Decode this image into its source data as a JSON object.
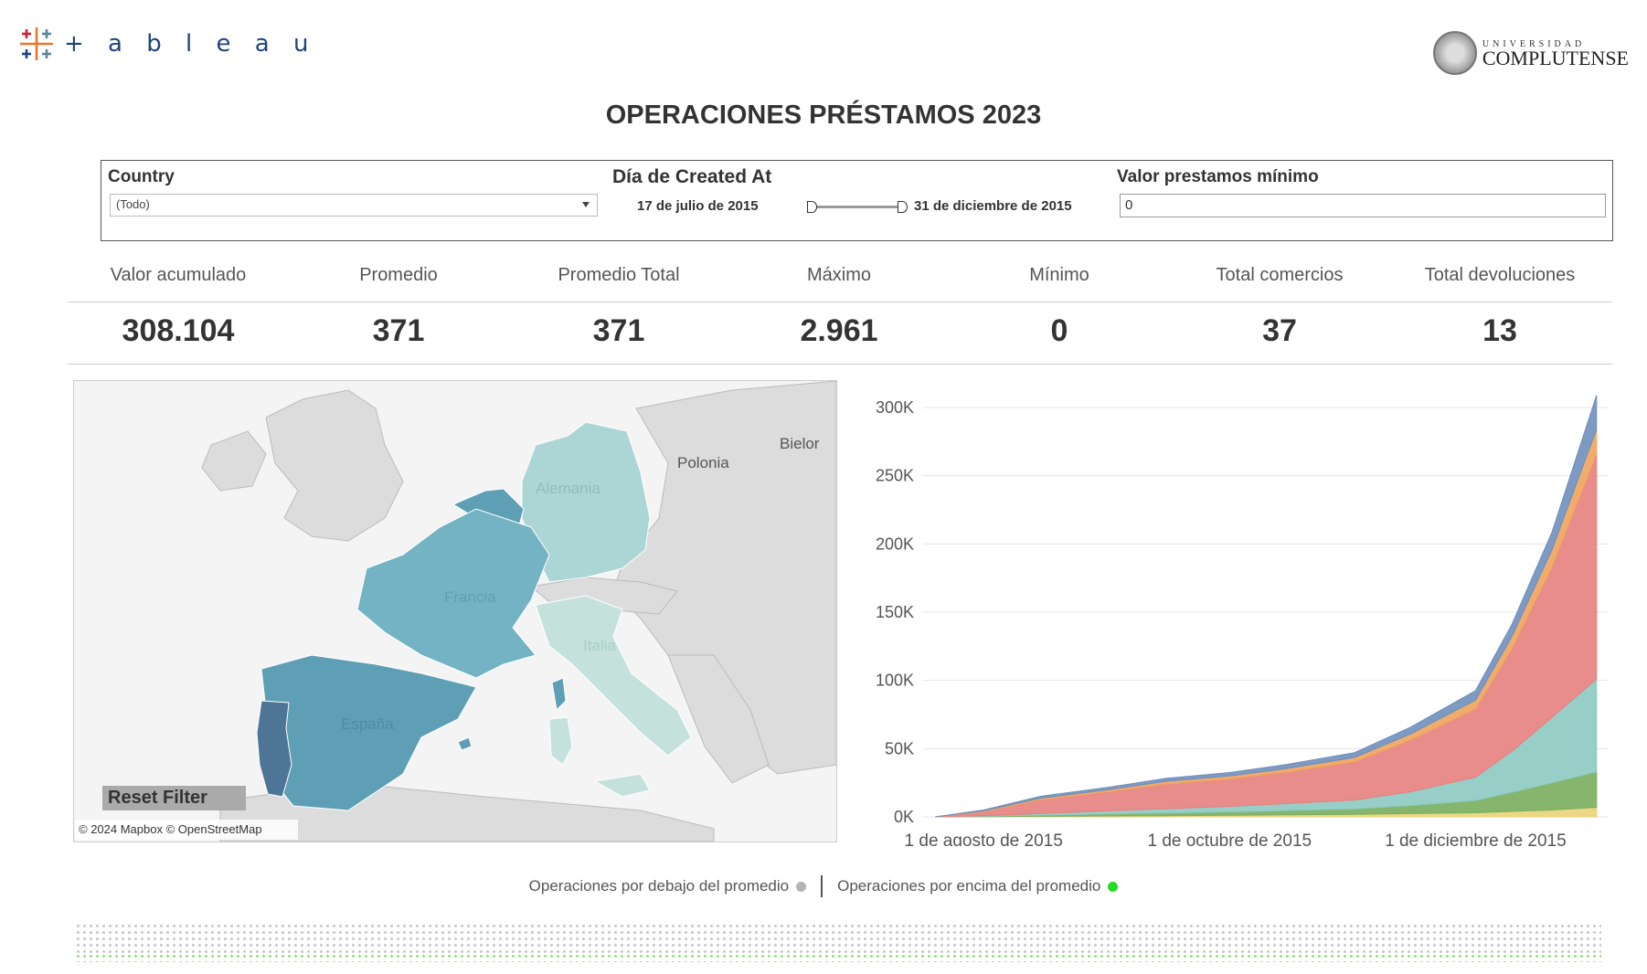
{
  "header": {
    "logo_text": "+ a b l e a u",
    "university_small": "UNIVERSIDAD",
    "university_big": "COMPLUTENSE",
    "title": "OPERACIONES PRÉSTAMOS 2023"
  },
  "filters": {
    "country_label": "Country",
    "country_value": "(Todo)",
    "date_label": "Día de Created At",
    "date_start": "17 de julio de 2015",
    "date_end": "31 de diciembre de 2015",
    "min_label": "Valor prestamos mínimo",
    "min_value": "0"
  },
  "kpis": [
    {
      "label": "Valor acumulado",
      "value": "308.104"
    },
    {
      "label": "Promedio",
      "value": "371"
    },
    {
      "label": "Promedio Total",
      "value": "371"
    },
    {
      "label": "Máximo",
      "value": "2.961"
    },
    {
      "label": "Mínimo",
      "value": "0"
    },
    {
      "label": "Total comercios",
      "value": "37"
    },
    {
      "label": "Total devoluciones",
      "value": "13"
    }
  ],
  "map": {
    "labels": {
      "polonia": "Polonia",
      "bielor": "Bielor",
      "alemania": "Alemania",
      "francia": "Francia",
      "italia": "Italia",
      "espana": "España"
    },
    "reset_label": "Reset Filter",
    "credit": "© 2024 Mapbox © OpenStreetMap",
    "colors": {
      "portugal": "#4e7596",
      "spain": "#5e9fb5",
      "france": "#73b3c4",
      "belgium": "#5e9fb5",
      "germany": "#acd6d6",
      "italy": "#c4e2db",
      "land": "#dcdcdc",
      "sea": "#f3f3f3"
    }
  },
  "chart_data": {
    "type": "area",
    "stacked": true,
    "x": [
      "2015-07-20",
      "2015-08-01",
      "2015-08-15",
      "2015-09-01",
      "2015-09-15",
      "2015-10-01",
      "2015-10-15",
      "2015-11-01",
      "2015-11-15",
      "2015-12-01",
      "2015-12-10",
      "2015-12-20",
      "2015-12-31"
    ],
    "x_ticks": [
      "1 de agosto de 2015",
      "1 de octubre de 2015",
      "1 de diciembre de 2015"
    ],
    "y_ticks": [
      "300K",
      "250K",
      "200K",
      "150K",
      "100K",
      "50K",
      "0K"
    ],
    "ylim": [
      0,
      300000
    ],
    "grid": true,
    "colors": [
      "#e9d378",
      "#79ae5d",
      "#8ccac2",
      "#e77f7f",
      "#f0a35c",
      "#6f8fbd"
    ],
    "series": [
      {
        "values": [
          0,
          200,
          400,
          700,
          900,
          1200,
          1500,
          1800,
          2400,
          3000,
          4000,
          5000,
          7000
        ]
      },
      {
        "values": [
          0,
          300,
          800,
          1500,
          2000,
          2500,
          3200,
          4000,
          6000,
          9000,
          14000,
          20000,
          26000
        ]
      },
      {
        "values": [
          0,
          400,
          1200,
          2200,
          3000,
          4000,
          5000,
          6500,
          10000,
          17000,
          30000,
          48000,
          68000
        ]
      },
      {
        "values": [
          0,
          3000,
          10000,
          14000,
          18000,
          20000,
          23000,
          28000,
          38000,
          50000,
          75000,
          110000,
          165000
        ]
      },
      {
        "values": [
          0,
          500,
          1200,
          1500,
          2000,
          2200,
          2600,
          3200,
          4500,
          6500,
          9000,
          13000,
          18000
        ]
      },
      {
        "values": [
          0,
          600,
          1400,
          1800,
          2200,
          2600,
          3000,
          3600,
          5000,
          7000,
          9000,
          13000,
          25000
        ]
      }
    ]
  },
  "legend": {
    "below_label": "Operaciones por debajo del promedio",
    "above_label": "Operaciones por  encima del promedio",
    "below_color": "#b3b3b3",
    "above_color": "#22dd22"
  }
}
